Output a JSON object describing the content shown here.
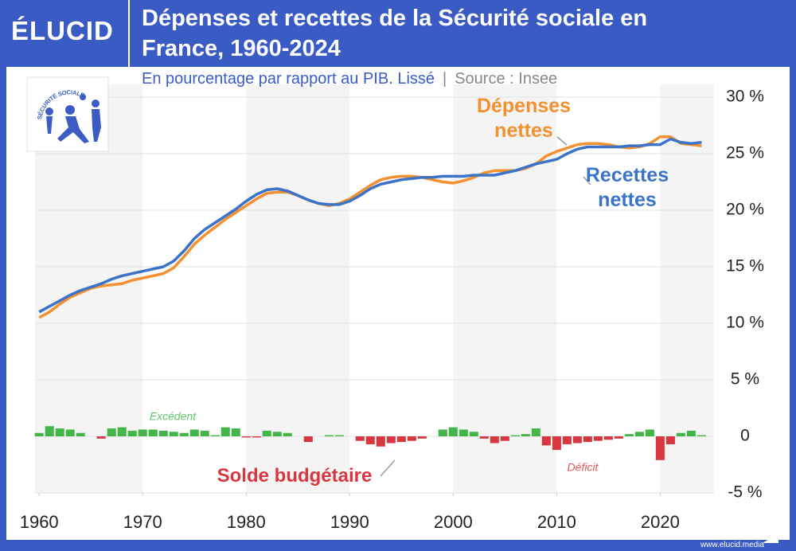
{
  "brand": "ÉLUCID",
  "footer": "www.elucid.media",
  "logo": {
    "text": "SÉCURITÉ SOCIALE"
  },
  "chart_data": {
    "type": "line",
    "title": "Dépenses et recettes de la Sécurité sociale en France, 1960-2024",
    "subtitle": "En pourcentage par rapport au PIB. Lissé",
    "separator": "|",
    "source": "Source : Insee",
    "x": [
      1960,
      1961,
      1962,
      1963,
      1964,
      1965,
      1966,
      1967,
      1968,
      1969,
      1970,
      1971,
      1972,
      1973,
      1974,
      1975,
      1976,
      1977,
      1978,
      1979,
      1980,
      1981,
      1982,
      1983,
      1984,
      1985,
      1986,
      1987,
      1988,
      1989,
      1990,
      1991,
      1992,
      1993,
      1994,
      1995,
      1996,
      1997,
      1998,
      1999,
      2000,
      2001,
      2002,
      2003,
      2004,
      2005,
      2006,
      2007,
      2008,
      2009,
      2010,
      2011,
      2012,
      2013,
      2014,
      2015,
      2016,
      2017,
      2018,
      2019,
      2020,
      2021,
      2022,
      2023,
      2024
    ],
    "series": [
      {
        "name": "Dépenses nettes",
        "color": "#f39130",
        "values": [
          10.5,
          11.0,
          11.7,
          12.3,
          12.7,
          13.1,
          13.3,
          13.4,
          13.5,
          13.8,
          14.0,
          14.2,
          14.4,
          14.9,
          15.9,
          17.0,
          17.8,
          18.5,
          19.2,
          19.8,
          20.4,
          21.0,
          21.5,
          21.6,
          21.6,
          21.3,
          20.9,
          20.6,
          20.4,
          20.6,
          21.0,
          21.6,
          22.2,
          22.7,
          22.9,
          23.0,
          23.0,
          22.9,
          22.7,
          22.5,
          22.4,
          22.6,
          22.9,
          23.3,
          23.5,
          23.5,
          23.5,
          23.7,
          24.1,
          24.8,
          25.2,
          25.5,
          25.8,
          25.9,
          25.9,
          25.8,
          25.6,
          25.5,
          25.6,
          25.9,
          26.5,
          26.5,
          25.9,
          25.8,
          25.7
        ]
      },
      {
        "name": "Recettes nettes",
        "color": "#3a73c8",
        "values": [
          11.0,
          11.5,
          12.0,
          12.5,
          12.9,
          13.2,
          13.5,
          13.9,
          14.2,
          14.4,
          14.6,
          14.8,
          15.0,
          15.5,
          16.4,
          17.5,
          18.3,
          18.9,
          19.5,
          20.1,
          20.8,
          21.4,
          21.8,
          21.9,
          21.7,
          21.3,
          20.9,
          20.6,
          20.5,
          20.5,
          20.8,
          21.3,
          21.9,
          22.3,
          22.5,
          22.7,
          22.8,
          22.9,
          22.9,
          23.0,
          23.0,
          23.0,
          23.1,
          23.1,
          23.1,
          23.3,
          23.5,
          23.8,
          24.1,
          24.3,
          24.5,
          25.0,
          25.4,
          25.6,
          25.6,
          25.6,
          25.6,
          25.7,
          25.7,
          25.8,
          25.8,
          26.3,
          26.0,
          25.9,
          26.0
        ]
      },
      {
        "name": "Solde budgétaire",
        "type": "bar",
        "color": "#44b549",
        "negative_color": "#d8373f",
        "values": [
          0.3,
          0.9,
          0.7,
          0.6,
          0.3,
          0.0,
          -0.2,
          0.7,
          0.8,
          0.5,
          0.6,
          0.6,
          0.5,
          0.4,
          0.3,
          0.6,
          0.5,
          0.1,
          0.8,
          0.7,
          -0.1,
          -0.1,
          0.5,
          0.4,
          0.3,
          0.0,
          -0.5,
          0.0,
          0.1,
          0.1,
          0.0,
          -0.4,
          -0.7,
          -0.9,
          -0.6,
          -0.5,
          -0.4,
          -0.2,
          0.0,
          0.6,
          0.8,
          0.6,
          0.4,
          -0.2,
          -0.6,
          -0.4,
          0.1,
          0.2,
          0.7,
          -0.8,
          -1.2,
          -0.7,
          -0.6,
          -0.5,
          -0.4,
          -0.3,
          -0.2,
          0.2,
          0.4,
          0.6,
          -2.1,
          -0.7,
          0.3,
          0.5,
          0.1
        ]
      }
    ],
    "annotations": [
      {
        "text": "Excédent",
        "color": "#5fc46a"
      },
      {
        "text": "Déficit",
        "color": "#e0575d"
      }
    ],
    "xlim": [
      1959.6,
      2025.2
    ],
    "xticks": [
      1960,
      1970,
      1980,
      1990,
      2000,
      2010,
      2020
    ],
    "ylim": [
      -5,
      30
    ],
    "yticks": [
      {
        "value": -5,
        "label": "-5 %"
      },
      0,
      {
        "value": 5,
        "label": "5 %"
      },
      {
        "value": 10,
        "label": "10 %"
      },
      {
        "value": 15,
        "label": "15 %"
      },
      {
        "value": 20,
        "label": "20 %"
      },
      {
        "value": 25,
        "label": "25 %"
      },
      {
        "value": 30,
        "label": "30 %"
      }
    ],
    "grid": true
  }
}
